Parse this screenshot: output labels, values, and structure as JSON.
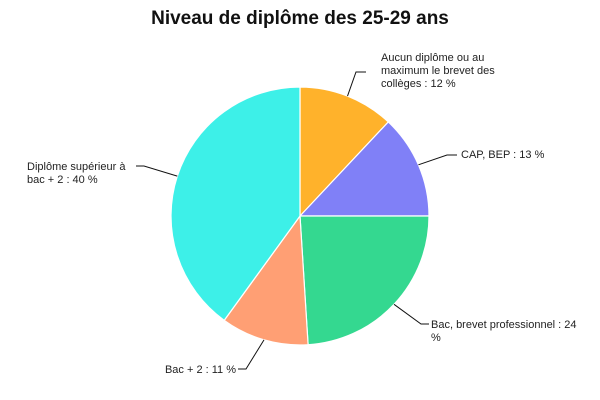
{
  "chart_data": {
    "type": "pie",
    "title": "Niveau de diplôme des 25-29 ans",
    "legend": "none",
    "slices": [
      {
        "label_lines": [
          "Aucun diplôme ou au",
          "maximum le brevet des",
          "collèges : 12 %"
        ],
        "value": 12,
        "color": "#ffb22b"
      },
      {
        "label_lines": [
          "CAP, BEP : 13 %"
        ],
        "value": 13,
        "color": "#8080f7"
      },
      {
        "label_lines": [
          "Bac, brevet professionnel : 24",
          "%"
        ],
        "value": 24,
        "color": "#34d890"
      },
      {
        "label_lines": [
          "Bac + 2 : 11 %"
        ],
        "value": 11,
        "color": "#ff9f74"
      },
      {
        "label_lines": [
          "Diplôme supérieur à",
          "bac + 2 : 40 %"
        ],
        "value": 40,
        "color": "#3df0e8"
      }
    ]
  }
}
